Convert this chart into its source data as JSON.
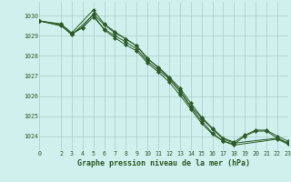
{
  "background_color": "#cff0ec",
  "grid_color": "#aaccc8",
  "line_color": "#2d5a27",
  "title": "Graphe pression niveau de la mer (hPa)",
  "xlim": [
    0,
    23
  ],
  "ylim": [
    1023.3,
    1030.7
  ],
  "xticks": [
    0,
    2,
    3,
    4,
    5,
    6,
    7,
    8,
    9,
    10,
    11,
    12,
    13,
    14,
    15,
    16,
    17,
    18,
    19,
    20,
    21,
    22,
    23
  ],
  "yticks": [
    1024,
    1025,
    1026,
    1027,
    1028,
    1029,
    1030
  ],
  "series": [
    {
      "x": [
        0,
        2,
        3,
        5,
        6,
        7,
        8,
        9,
        10,
        11,
        12,
        13,
        14,
        15,
        16,
        17,
        18,
        22,
        23
      ],
      "y": [
        1029.75,
        1029.6,
        1029.15,
        1030.3,
        1029.6,
        1029.2,
        1028.85,
        1028.5,
        1027.9,
        1027.4,
        1026.9,
        1026.3,
        1025.5,
        1024.9,
        1024.35,
        1023.85,
        1023.65,
        1023.9,
        1023.65
      ]
    },
    {
      "x": [
        0,
        2,
        3,
        5,
        6,
        7,
        8,
        9,
        10,
        11,
        12,
        13,
        14,
        15,
        16,
        17,
        18,
        22,
        23
      ],
      "y": [
        1029.75,
        1029.55,
        1029.05,
        1030.05,
        1029.3,
        1028.9,
        1028.55,
        1028.25,
        1027.65,
        1027.2,
        1026.7,
        1026.05,
        1025.35,
        1024.65,
        1024.1,
        1023.75,
        1023.55,
        1023.85,
        1023.6
      ]
    },
    {
      "x": [
        0,
        2,
        3,
        4,
        5,
        6,
        7,
        8,
        9,
        10,
        11,
        12,
        13,
        14,
        15,
        16,
        17,
        18,
        19,
        20,
        21,
        22,
        23
      ],
      "y": [
        1029.75,
        1029.5,
        1029.1,
        1029.4,
        1029.95,
        1029.35,
        1029.0,
        1028.7,
        1028.35,
        1027.75,
        1027.3,
        1026.85,
        1026.2,
        1025.45,
        1024.75,
        1024.15,
        1023.75,
        1023.6,
        1024.0,
        1024.25,
        1024.25,
        1023.9,
        1023.65
      ]
    },
    {
      "x": [
        0,
        2,
        3,
        4,
        5,
        6,
        7,
        8,
        9,
        10,
        11,
        12,
        13,
        14,
        15,
        16,
        17,
        18,
        19,
        20,
        21,
        22,
        23
      ],
      "y": [
        1029.75,
        1029.55,
        1029.1,
        1029.45,
        1030.1,
        1029.55,
        1029.15,
        1028.85,
        1028.5,
        1027.85,
        1027.45,
        1026.95,
        1026.4,
        1025.65,
        1024.95,
        1024.4,
        1023.9,
        1023.7,
        1024.05,
        1024.3,
        1024.3,
        1024.0,
        1023.75
      ]
    }
  ]
}
